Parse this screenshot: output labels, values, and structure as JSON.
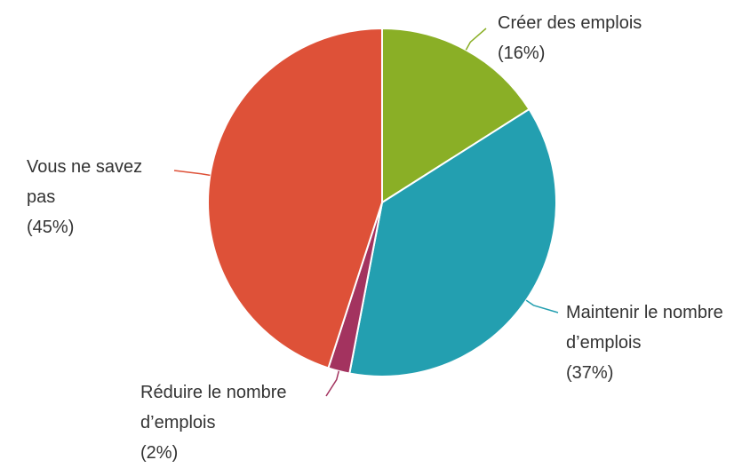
{
  "chart_data": {
    "type": "pie",
    "categories": [
      "Créer des emplois",
      "Maintenir le nombre d’emplois",
      "Réduire le nombre d’emplois",
      "Vous ne savez pas"
    ],
    "values": [
      16,
      37,
      2,
      45
    ],
    "value_labels": [
      "(16%)",
      "(37%)",
      "(2%)",
      "(45%)"
    ],
    "colors": [
      "#8aaf26",
      "#239fb0",
      "#a3335f",
      "#de5138"
    ]
  }
}
